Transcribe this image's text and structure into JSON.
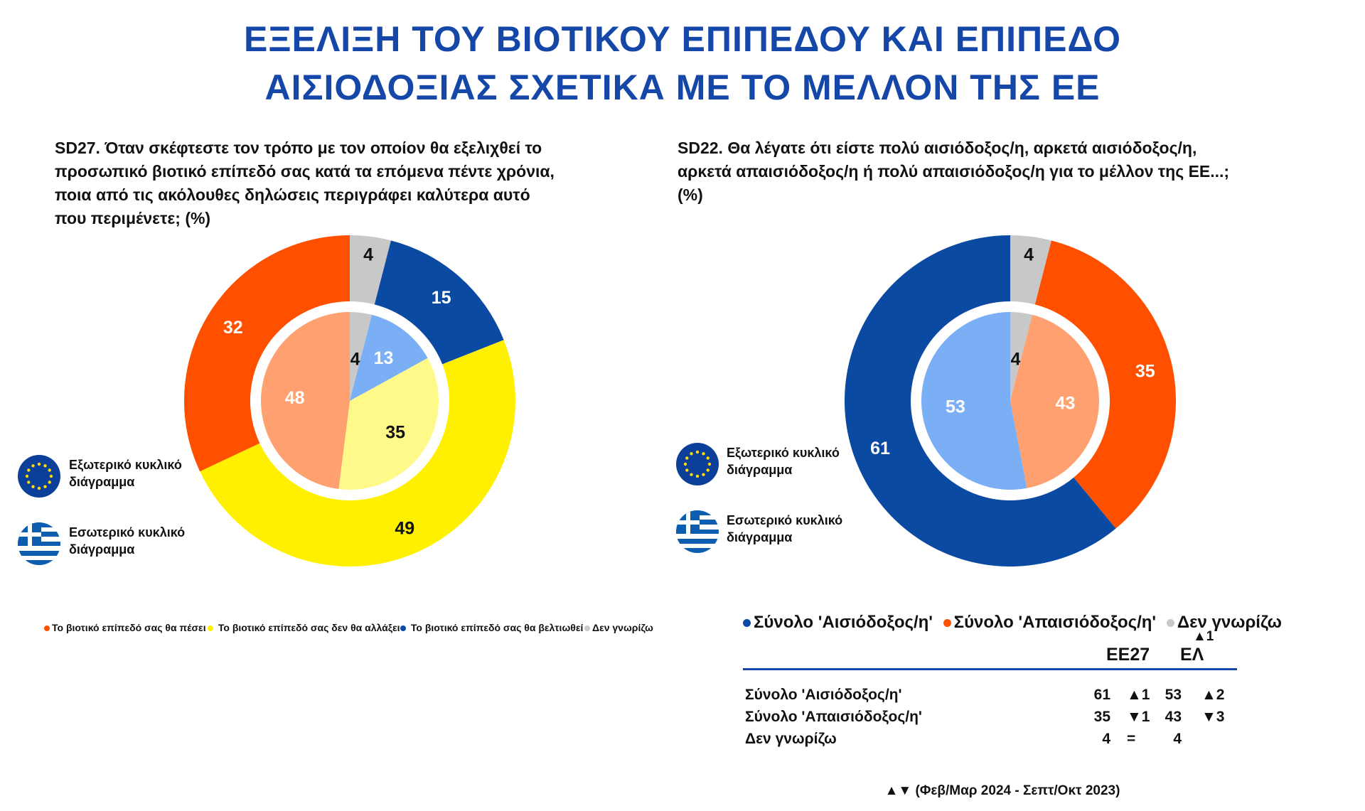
{
  "title_lines": [
    "ΕΞΕΛΙΞΗ ΤΟΥ ΒΙΟΤΙΚΟΥ ΕΠΙΠΕΔΟΥ ΚΑΙ ΕΠΙΠΕΔΟ",
    "ΑΙΣΙΟΔΟΞΙΑΣ ΣΧΕΤΙΚΑ ΜΕ ΤΟ ΜΕΛΛΟΝ ΤΗΣ ΕΕ"
  ],
  "left": {
    "question_lines": [
      "SD27. Όταν σκέφτεστε τον τρόπο με τον οποίον θα εξελιχθεί το",
      "προσωπικό βιοτικό επίπεδό σας κατά τα επόμενα πέντε χρόνια,",
      "ποια από τις ακόλουθες δηλώσεις περιγράφει καλύτερα αυτό",
      "που περιμένετε; (%)"
    ],
    "outer_label": [
      "Εξωτερικό κυκλικό",
      "διάγραμμα"
    ],
    "inner_label": [
      "Εσωτερικό κυκλικό",
      "διάγραμμα"
    ],
    "legend": [
      {
        "label": "Το βιοτικό επίπεδό σας θα πέσει",
        "color": "#FF5000"
      },
      {
        "label": "Το βιοτικό επίπεδό σας δεν θα αλλάξει",
        "color": "#FFF000"
      },
      {
        "label": "Το βιοτικό επίπεδό σας θα βελτιωθεί",
        "color": "#0B4AA2"
      },
      {
        "label": "Δεν γνωρίζω",
        "color": "#C8C8C8"
      }
    ]
  },
  "right": {
    "question_lines": [
      "SD22. Θα λέγατε ότι είστε πολύ αισιόδοξος/η, αρκετά αισιόδοξος/η,",
      "αρκετά απαισιόδοξος/η ή πολύ απαισιόδοξος/η για το μέλλον της ΕΕ...;",
      "(%)"
    ],
    "outer_label": [
      "Εξωτερικό κυκλικό",
      "διάγραμμα"
    ],
    "inner_label": [
      "Εσωτερικό κυκλικό",
      "διάγραμμα"
    ],
    "legend": [
      {
        "label": "Σύνολο 'Αισιόδοξος/η'",
        "color": "#0B4AA2"
      },
      {
        "label": "Σύνολο 'Απαισιόδοξος/η'",
        "color": "#FF5000"
      },
      {
        "label": "Δεν γνωρίζω",
        "color": "#C8C8C8"
      }
    ],
    "table": {
      "note_above": "▲1",
      "headers": [
        "ΕΕ27",
        "ΕΛ"
      ],
      "rows": [
        {
          "label": "Σύνολο 'Αισιόδοξος/η'",
          "eu": "61",
          "eu_change": "▲1",
          "gr": "53",
          "gr_change": "▲2"
        },
        {
          "label": "Σύνολο 'Απαισιόδοξος/η'",
          "eu": "35",
          "eu_change": "▼1",
          "gr": "43",
          "gr_change": "▼3"
        },
        {
          "label": "Δεν γνωρίζω",
          "eu": "4",
          "eu_change": "=",
          "gr": "4",
          "gr_change": ""
        }
      ]
    },
    "footnote": "▲▼ (Φεβ/Μαρ 2024 - Σεπτ/Οκτ 2023)"
  },
  "chart_data": [
    {
      "type": "pie",
      "name": "SD27",
      "rings": [
        {
          "ring": "outer",
          "region": "ΕΕ27",
          "categories": [
            "Δεν γνωρίζω",
            "Το βιοτικό επίπεδό σας θα βελτιωθεί",
            "Το βιοτικό επίπεδό σας δεν θα αλλάξει",
            "Το βιοτικό επίπεδό σας θα πέσει"
          ],
          "values": [
            4,
            15,
            49,
            32
          ],
          "colors": [
            "#C8C8C8",
            "#0B4AA2",
            "#FFF000",
            "#FF5000"
          ],
          "label_colors": [
            "#111",
            "#fff",
            "#111",
            "#fff"
          ]
        },
        {
          "ring": "inner",
          "region": "ΕΛ",
          "categories": [
            "Δεν γνωρίζω",
            "Το βιοτικό επίπεδό σας θα βελτιωθεί",
            "Το βιοτικό επίπεδό σας δεν θα αλλάξει",
            "Το βιοτικό επίπεδό σας θα πέσει"
          ],
          "values": [
            4,
            13,
            35,
            48
          ],
          "colors": [
            "#C8C8C8",
            "#7AAEF5",
            "#FFF98A",
            "#FFA070"
          ],
          "label_colors": [
            "#111",
            "#fff",
            "#111",
            "#fff"
          ]
        }
      ]
    },
    {
      "type": "pie",
      "name": "SD22",
      "rings": [
        {
          "ring": "outer",
          "region": "ΕΕ27",
          "categories": [
            "Δεν γνωρίζω",
            "Σύνολο 'Απαισιόδοξος/η'",
            "Σύνολο 'Αισιόδοξος/η'"
          ],
          "values": [
            4,
            35,
            61
          ],
          "colors": [
            "#C8C8C8",
            "#FF5000",
            "#0B4AA2"
          ],
          "label_colors": [
            "#111",
            "#fff",
            "#fff"
          ]
        },
        {
          "ring": "inner",
          "region": "ΕΛ",
          "categories": [
            "Δεν γνωρίζω",
            "Σύνολο 'Απαισιόδοξος/η'",
            "Σύνολο 'Αισιόδοξος/η'"
          ],
          "values": [
            4,
            43,
            53
          ],
          "colors": [
            "#C8C8C8",
            "#FFA070",
            "#7AAEF5"
          ],
          "label_colors": [
            "#111",
            "#fff",
            "#fff"
          ]
        }
      ]
    }
  ]
}
